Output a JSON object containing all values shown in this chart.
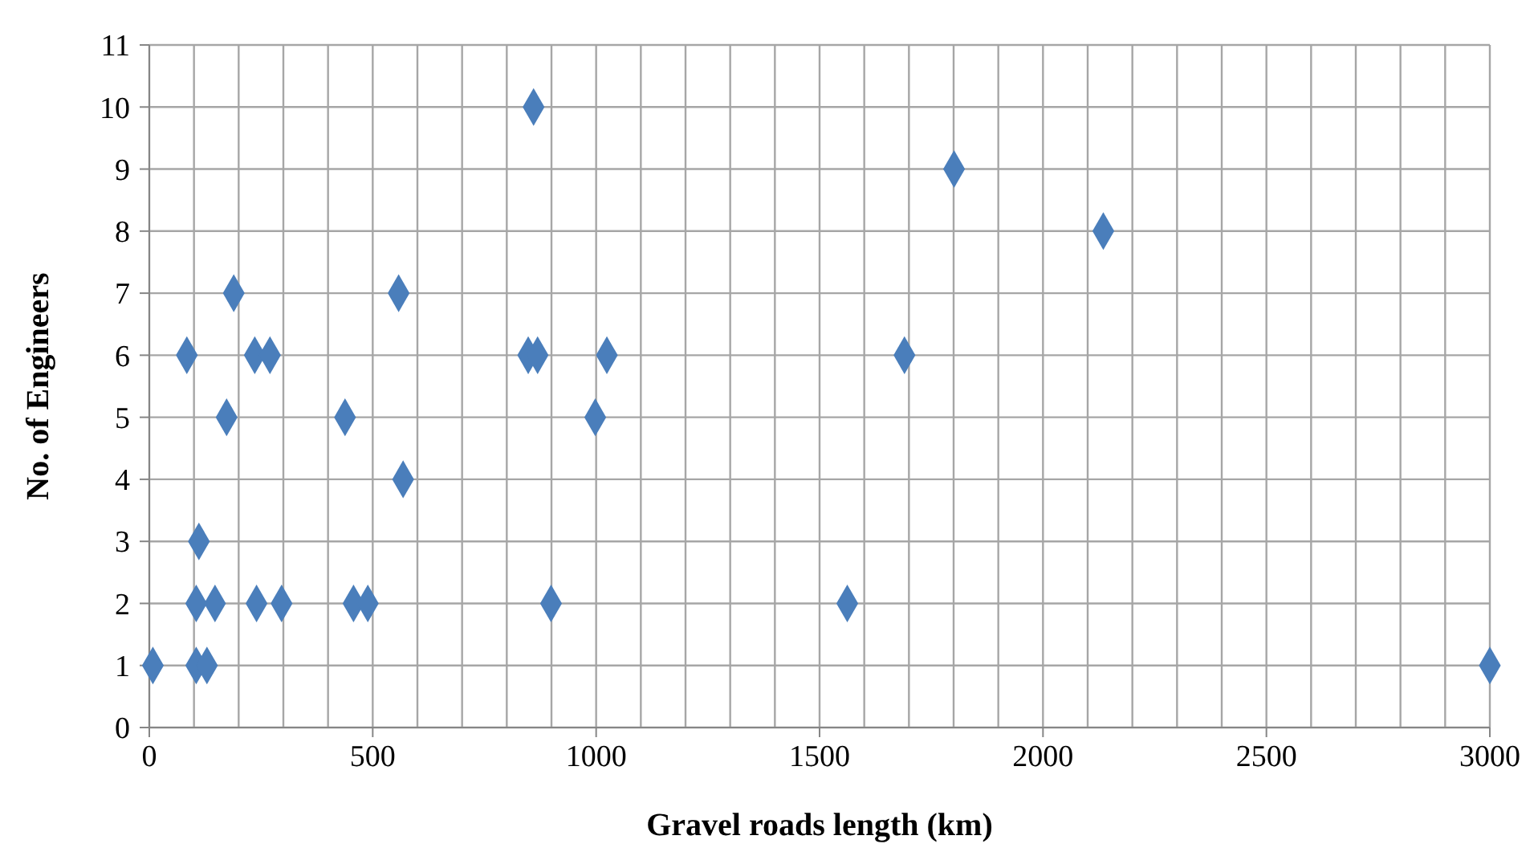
{
  "chart_data": {
    "type": "scatter",
    "xlabel": "Gravel roads length (km)",
    "ylabel": "No. of Engineers",
    "marker": "diamond",
    "grid": true,
    "x": [
      8,
      105,
      129,
      111,
      105,
      147,
      240,
      296,
      457,
      489,
      899,
      1562,
      173,
      438,
      998,
      568,
      84,
      236,
      270,
      848,
      869,
      1024,
      1690,
      189,
      558,
      2135,
      1801,
      860,
      3000
    ],
    "series": [
      {
        "color": "#4a7ebb",
        "values": [
          1,
          1,
          1,
          3,
          2,
          2,
          2,
          2,
          2,
          2,
          2,
          2,
          5,
          5,
          5,
          4,
          6,
          6,
          6,
          6,
          6,
          6,
          6,
          7,
          7,
          8,
          9,
          10,
          1
        ]
      }
    ],
    "xlim": [
      0,
      3000
    ],
    "ylim": [
      0,
      11
    ],
    "xticks": [
      0,
      {
        "value": 100,
        "label": null
      },
      {
        "value": 200,
        "label": null
      },
      {
        "value": 300,
        "label": null
      },
      {
        "value": 400,
        "label": null
      },
      500,
      {
        "value": 600,
        "label": null
      },
      {
        "value": 700,
        "label": null
      },
      {
        "value": 800,
        "label": null
      },
      {
        "value": 900,
        "label": null
      },
      1000,
      {
        "value": 1100,
        "label": null
      },
      {
        "value": 1200,
        "label": null
      },
      {
        "value": 1300,
        "label": null
      },
      {
        "value": 1400,
        "label": null
      },
      1500,
      {
        "value": 1600,
        "label": null
      },
      {
        "value": 1700,
        "label": null
      },
      {
        "value": 1800,
        "label": null
      },
      {
        "value": 1900,
        "label": null
      },
      2000,
      {
        "value": 2100,
        "label": null
      },
      {
        "value": 2200,
        "label": null
      },
      {
        "value": 2300,
        "label": null
      },
      {
        "value": 2400,
        "label": null
      },
      2500,
      {
        "value": 2600,
        "label": null
      },
      {
        "value": 2700,
        "label": null
      },
      {
        "value": 2800,
        "label": null
      },
      {
        "value": 2900,
        "label": null
      },
      3000
    ],
    "yticks": [
      0,
      1,
      2,
      3,
      4,
      5,
      6,
      7,
      8,
      9,
      10,
      11
    ]
  }
}
